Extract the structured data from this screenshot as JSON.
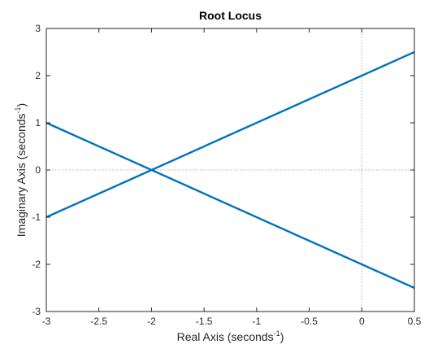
{
  "chart_data": {
    "type": "line",
    "title": "Root Locus",
    "xlabel": {
      "prefix": "Real Axis (seconds",
      "exponent": "-1",
      "suffix": ")"
    },
    "ylabel": {
      "prefix": "Imaginary Axis (seconds",
      "exponent": "-1",
      "suffix": ")"
    },
    "xlim": [
      -3,
      0.5
    ],
    "ylim": [
      -3,
      3
    ],
    "xticks": [
      -3,
      -2.5,
      -2,
      -1.5,
      -1,
      -0.5,
      0,
      0.5
    ],
    "xtick_labels": [
      "-3",
      "-2.5",
      "-2",
      "-1.5",
      "-1",
      "-0.5",
      "0",
      "0.5"
    ],
    "yticks": [
      -3,
      -2,
      -1,
      0,
      1,
      2,
      3
    ],
    "ytick_labels": [
      "-3",
      "-2",
      "-1",
      "0",
      "1",
      "2",
      "3"
    ],
    "grid": false,
    "reference_lines": [
      {
        "axis": "x",
        "value": 0
      },
      {
        "axis": "y",
        "value": 0
      }
    ],
    "series": [
      {
        "x": [
          -3,
          0.5
        ],
        "y": [
          -1,
          2.5
        ]
      },
      {
        "x": [
          -3,
          0.5
        ],
        "y": [
          1,
          -2.5
        ]
      }
    ],
    "colors": {
      "series": "#0072BD",
      "axis": "#262626",
      "reference": "#b0b0b0"
    }
  }
}
